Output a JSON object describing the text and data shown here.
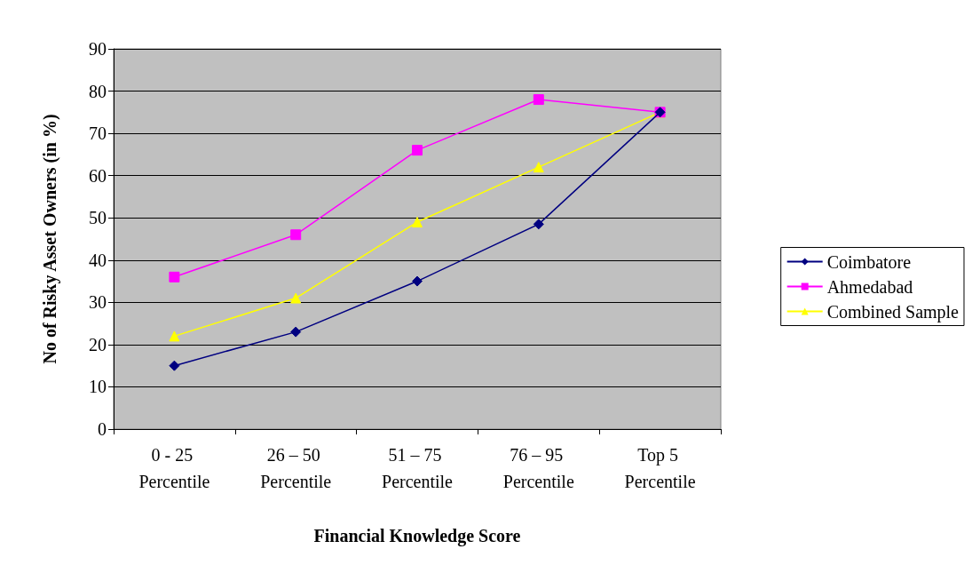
{
  "chart_data": {
    "type": "line",
    "xlabel": "Financial Knowledge Score",
    "ylabel": "No of Risky Asset Owners (in %)",
    "categories": [
      "0 - 25 Percentile",
      "26 – 50 Percentile",
      "51 – 75 Percentile",
      "76 – 95 Percentile",
      "Top 5 Percentile"
    ],
    "series": [
      {
        "name": "Coimbatore",
        "color": "#000080",
        "marker": "diamond",
        "values": [
          15,
          23,
          35,
          48.5,
          75
        ]
      },
      {
        "name": "Ahmedabad",
        "color": "#ff00ff",
        "marker": "square",
        "values": [
          36,
          46,
          66,
          78,
          75
        ]
      },
      {
        "name": "Combined Sample",
        "color": "#ffff00",
        "marker": "triangle",
        "values": [
          22,
          31,
          49,
          62,
          75
        ]
      }
    ],
    "ylim": [
      0,
      90
    ],
    "yticks": [
      0,
      10,
      20,
      30,
      40,
      50,
      60,
      70,
      80,
      90
    ],
    "grid": "y",
    "legend": "right"
  }
}
